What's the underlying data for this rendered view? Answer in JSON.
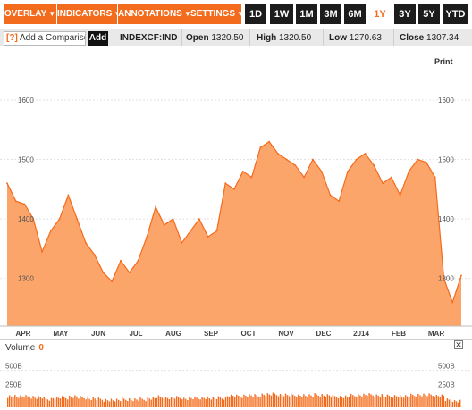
{
  "toolbar": {
    "overlay": "OVERLAY",
    "indicators": "INDICATORS",
    "annotations": "ANNOTATIONS",
    "settings": "SETTINGS",
    "caret": "▼",
    "ranges": [
      "1D",
      "1W",
      "1M",
      "3M",
      "6M",
      "1Y",
      "3Y",
      "5Y",
      "YTD"
    ],
    "selected_range": "1Y"
  },
  "info": {
    "compare_q": "[?]",
    "compare_placeholder": "Add a Comparison",
    "add_label": "Add",
    "ticker": "INDEXCF:IND",
    "open_label": "Open",
    "open_value": "1320.50",
    "high_label": "High",
    "high_value": "1320.50",
    "low_label": "Low",
    "low_value": "1270.63",
    "close_label": "Close",
    "close_value": "1307.34"
  },
  "print_label": "Print",
  "volume": {
    "label": "Volume",
    "value": "0",
    "close_glyph": "✕",
    "ticks": [
      "500B",
      "250B"
    ]
  },
  "colors": {
    "accent": "#f36b1c",
    "area_fill": "#fca56a",
    "line": "#f36b1c",
    "dark": "#1c1c1c"
  },
  "chart_data": {
    "type": "area",
    "x_ticks": [
      "APR",
      "MAY",
      "JUN",
      "JUL",
      "AUG",
      "SEP",
      "OCT",
      "NOV",
      "DEC",
      "2014",
      "FEB",
      "MAR"
    ],
    "y_ticks": [
      1300,
      1400,
      1500,
      1600
    ],
    "ylim": [
      1220,
      1660
    ],
    "x": [
      "2013-03-22",
      "2013-03-29",
      "2013-04-05",
      "2013-04-12",
      "2013-04-19",
      "2013-04-26",
      "2013-05-03",
      "2013-05-10",
      "2013-05-17",
      "2013-05-24",
      "2013-05-31",
      "2013-06-07",
      "2013-06-14",
      "2013-06-21",
      "2013-06-28",
      "2013-07-05",
      "2013-07-12",
      "2013-07-19",
      "2013-07-26",
      "2013-08-02",
      "2013-08-09",
      "2013-08-16",
      "2013-08-23",
      "2013-08-30",
      "2013-09-06",
      "2013-09-13",
      "2013-09-20",
      "2013-09-27",
      "2013-10-04",
      "2013-10-11",
      "2013-10-18",
      "2013-10-25",
      "2013-11-01",
      "2013-11-08",
      "2013-11-15",
      "2013-11-22",
      "2013-11-29",
      "2013-12-06",
      "2013-12-13",
      "2013-12-20",
      "2013-12-27",
      "2014-01-03",
      "2014-01-10",
      "2014-01-17",
      "2014-01-24",
      "2014-01-31",
      "2014-02-07",
      "2014-02-14",
      "2014-02-21",
      "2014-02-28",
      "2014-03-07",
      "2014-03-14",
      "2014-03-21"
    ],
    "values": [
      1460,
      1430,
      1425,
      1400,
      1345,
      1380,
      1400,
      1440,
      1400,
      1360,
      1340,
      1310,
      1295,
      1330,
      1310,
      1330,
      1370,
      1420,
      1390,
      1400,
      1360,
      1380,
      1400,
      1370,
      1380,
      1460,
      1450,
      1480,
      1470,
      1520,
      1530,
      1510,
      1500,
      1490,
      1470,
      1500,
      1480,
      1440,
      1430,
      1480,
      1500,
      1510,
      1490,
      1460,
      1470,
      1440,
      1480,
      1500,
      1495,
      1470,
      1300,
      1260,
      1305
    ],
    "volume": {
      "unit": "B",
      "ticks": [
        250,
        500
      ]
    }
  }
}
